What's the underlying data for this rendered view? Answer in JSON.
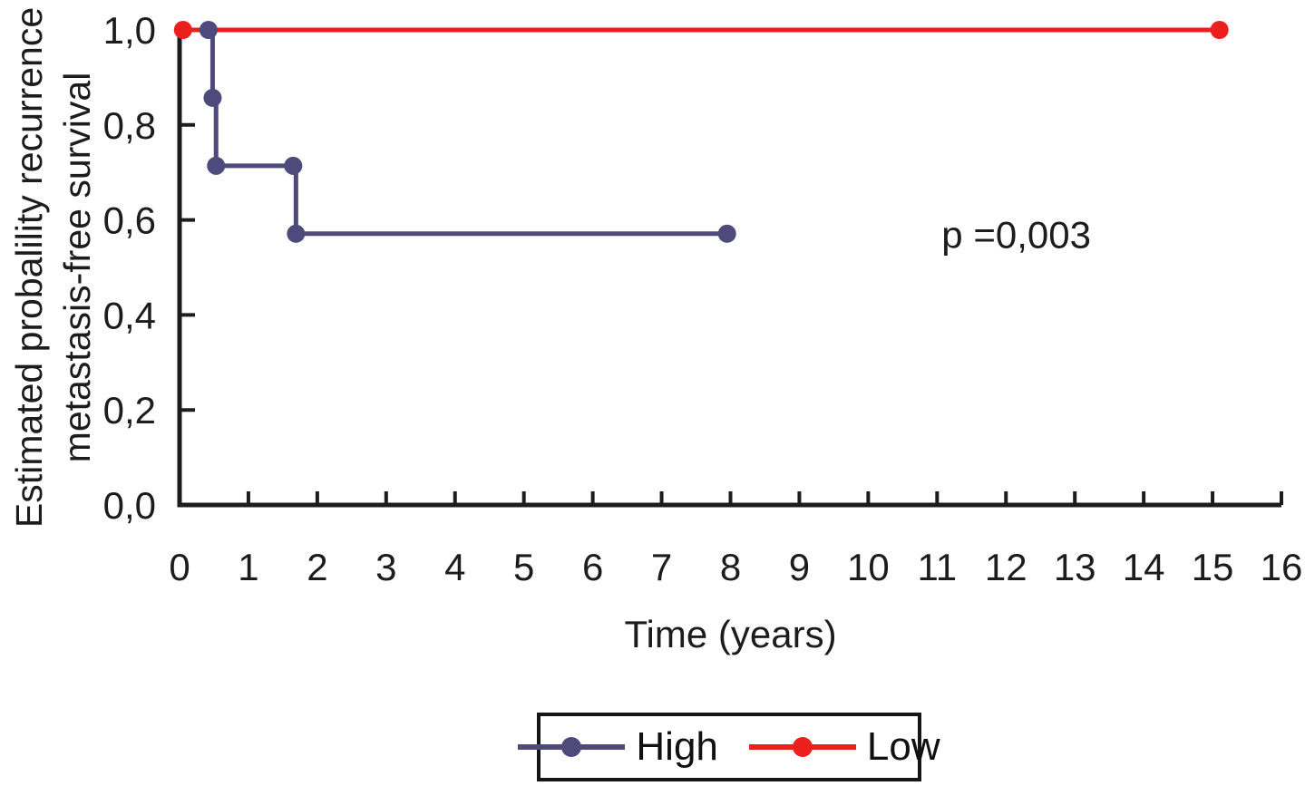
{
  "figure": {
    "y_axis_label_line1": "Estimated probalility recurrence",
    "y_axis_label_line2": "metastasis-free survival",
    "x_axis_label": "Time (years)",
    "p_value_text": "p =0,003",
    "legend": {
      "items": [
        {
          "label": "High",
          "color": "#4e4a7b",
          "marker": "filled-circle"
        },
        {
          "label": "Low",
          "color": "#ec1f1f",
          "marker": "filled-circle"
        }
      ]
    }
  },
  "chart_data": {
    "type": "line",
    "subtype": "kaplan-meier-step",
    "title": "",
    "xlabel": "Time (years)",
    "ylabel": "Estimated probalility recurrence metastasis-free survival",
    "xlim": [
      0,
      16
    ],
    "ylim": [
      0.0,
      1.0
    ],
    "grid": false,
    "legend_position": "bottom-center",
    "decimal_separator": ",",
    "x_ticks": [
      0,
      1,
      2,
      3,
      4,
      5,
      6,
      7,
      8,
      9,
      10,
      11,
      12,
      13,
      14,
      15,
      16
    ],
    "y_ticks": [
      0.0,
      0.2,
      0.4,
      0.6,
      0.8,
      1.0
    ],
    "y_tick_labels": [
      "0,0",
      "0,2",
      "0,4",
      "0,6",
      "0,8",
      "1,0"
    ],
    "annotation": {
      "text": "p =0,003",
      "x": 12.15,
      "y": 0.57
    },
    "series": [
      {
        "name": "Low",
        "color": "#ec1f1f",
        "step": "after",
        "marker": "circle",
        "points": [
          [
            0.05,
            1.0
          ],
          [
            15.1,
            1.0
          ]
        ]
      },
      {
        "name": "High",
        "color": "#4e4a7b",
        "step": "after",
        "marker": "circle",
        "points": [
          [
            0.42,
            1.0
          ],
          [
            0.48,
            0.857
          ],
          [
            0.53,
            0.714
          ],
          [
            1.65,
            0.714
          ],
          [
            1.69,
            0.571
          ],
          [
            7.95,
            0.571
          ]
        ]
      }
    ]
  },
  "colors": {
    "axis": "#1c1c1c",
    "text": "#1c1c1c",
    "background": "#ffffff",
    "high": "#4e4a7b",
    "low": "#ec1f1f"
  }
}
